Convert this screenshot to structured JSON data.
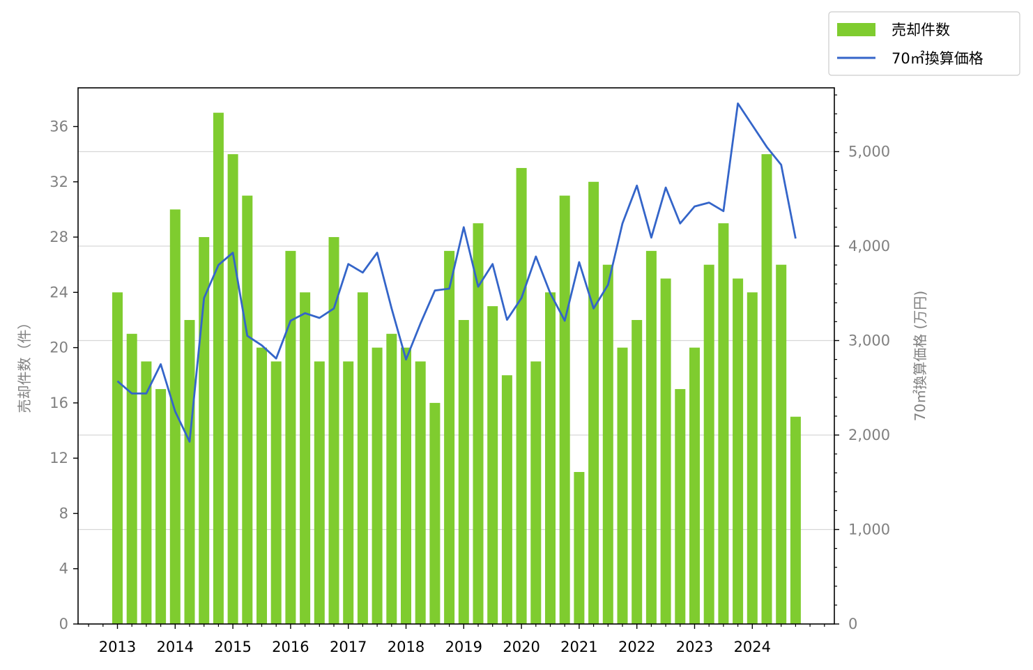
{
  "chart_data": {
    "type": "bar+line",
    "x_tick_labels": [
      "2013",
      "2014",
      "2015",
      "2016",
      "2017",
      "2018",
      "2019",
      "2020",
      "2021",
      "2022",
      "2023",
      "2024"
    ],
    "periods_per_year": 4,
    "start_year": 2013,
    "series": [
      {
        "name": "売却件数",
        "type": "bar",
        "axis": "left",
        "color": "#7fcc2f",
        "values": [
          24,
          21,
          19,
          17,
          30,
          22,
          28,
          37,
          34,
          31,
          20,
          19,
          27,
          24,
          19,
          28,
          19,
          24,
          20,
          21,
          20,
          19,
          16,
          27,
          22,
          29,
          23,
          18,
          33,
          19,
          24,
          31,
          11,
          32,
          26,
          20,
          22,
          27,
          25,
          17,
          20,
          26,
          29,
          25,
          24,
          34,
          26,
          15
        ]
      },
      {
        "name": "70㎡換算価格",
        "type": "line",
        "axis": "right",
        "color": "#3465c9",
        "values": [
          2570,
          2440,
          2440,
          2750,
          2250,
          1930,
          3450,
          3800,
          3930,
          3050,
          2950,
          2810,
          3210,
          3290,
          3240,
          3340,
          3810,
          3720,
          3930,
          3340,
          2800,
          3180,
          3530,
          3550,
          4200,
          3570,
          3810,
          3220,
          3450,
          3890,
          3500,
          3210,
          3830,
          3340,
          3590,
          4240,
          4640,
          4090,
          4620,
          4240,
          4420,
          4460,
          4370,
          5510,
          5280,
          5050,
          4860,
          4080
        ]
      }
    ],
    "left_axis": {
      "label": "売却件数（件）",
      "ylim": [
        0,
        38.8
      ],
      "ticks": [
        0,
        4,
        8,
        12,
        16,
        20,
        24,
        28,
        32,
        36
      ],
      "tick_labels": [
        "0",
        "4",
        "8",
        "12",
        "16",
        "20",
        "24",
        "28",
        "32",
        "36"
      ]
    },
    "right_axis": {
      "label": "70㎡換算価格 (万円)",
      "ylim": [
        0,
        5675
      ],
      "ticks": [
        0,
        1000,
        2000,
        3000,
        4000,
        5000
      ],
      "tick_labels": [
        "0",
        "1,000",
        "2,000",
        "3,000",
        "4,000",
        "5,000"
      ],
      "minor_tick_step": 200
    },
    "grid": "horizontal on right-axis major ticks",
    "legend": {
      "placement": "top-right, outside plot",
      "entries": [
        "売却件数",
        "70㎡換算価格"
      ]
    }
  }
}
